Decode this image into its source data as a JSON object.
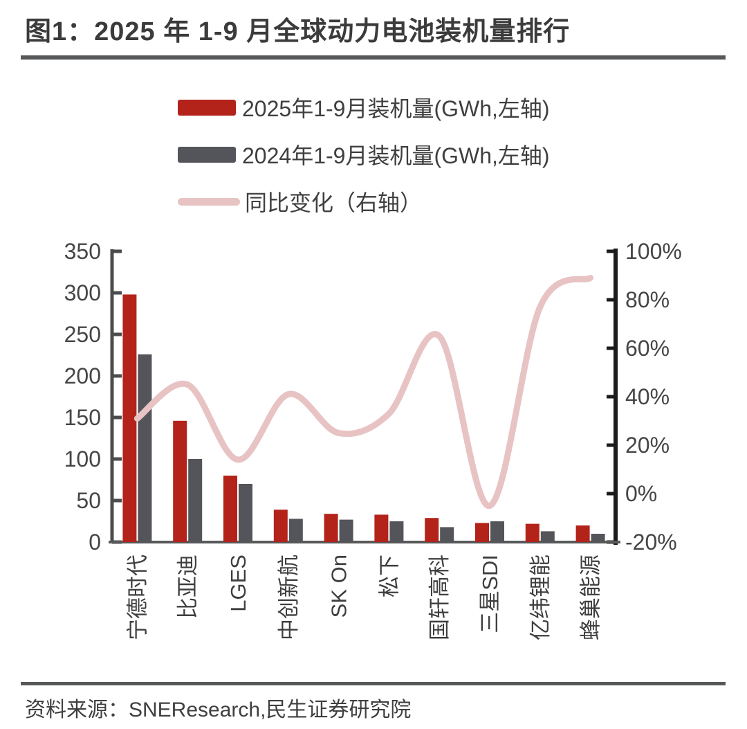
{
  "header": {
    "title": "图1：2025 年 1-9 月全球动力电池装机量排行"
  },
  "footer": {
    "source": "资料来源：SNEResearch,民生证券研究院"
  },
  "colors": {
    "bar2025": "#b3231a",
    "bar2024": "#54555a",
    "yoyLine": "#e8c3c4",
    "axisLabel": "#454545",
    "leftAxis": "#4b4c4e",
    "rightAxis": "#1b1b1b",
    "baseline": "#58595b",
    "categoryLabel": "#3e3e3e"
  },
  "chart_data": {
    "type": "combo-bar-line",
    "categories": [
      "宁德时代",
      "比亚迪",
      "LGES",
      "中创新航",
      "SK On",
      "松下",
      "国轩高科",
      "三星SDI",
      "亿纬锂能",
      "蜂巢能源"
    ],
    "series": [
      {
        "name": "2025年1-9月装机量(GWh,左轴)",
        "type": "bar",
        "axis": "left",
        "color": "#b3231a",
        "values": [
          298,
          146,
          80,
          39,
          34,
          33,
          29,
          23,
          22,
          20
        ]
      },
      {
        "name": "2024年1-9月装机量(GWh,左轴)",
        "type": "bar",
        "axis": "left",
        "color": "#54555a",
        "values": [
          226,
          100,
          70,
          28,
          27,
          25,
          18,
          25,
          13,
          10
        ]
      },
      {
        "name": "同比变化（右轴）",
        "type": "line",
        "axis": "right",
        "color": "#e8c3c4",
        "unit": "%",
        "values": [
          31,
          45,
          14,
          41,
          25,
          33,
          65,
          -5,
          77,
          89
        ]
      }
    ],
    "left_axis": {
      "min": 0,
      "max": 350,
      "ticks": [
        0,
        50,
        100,
        150,
        200,
        250,
        300,
        350
      ]
    },
    "right_axis": {
      "min": -20,
      "max": 100,
      "ticks": [
        -20,
        0,
        20,
        40,
        60,
        80,
        100
      ],
      "suffix": "%"
    },
    "grid": false,
    "legend_position": "top"
  }
}
